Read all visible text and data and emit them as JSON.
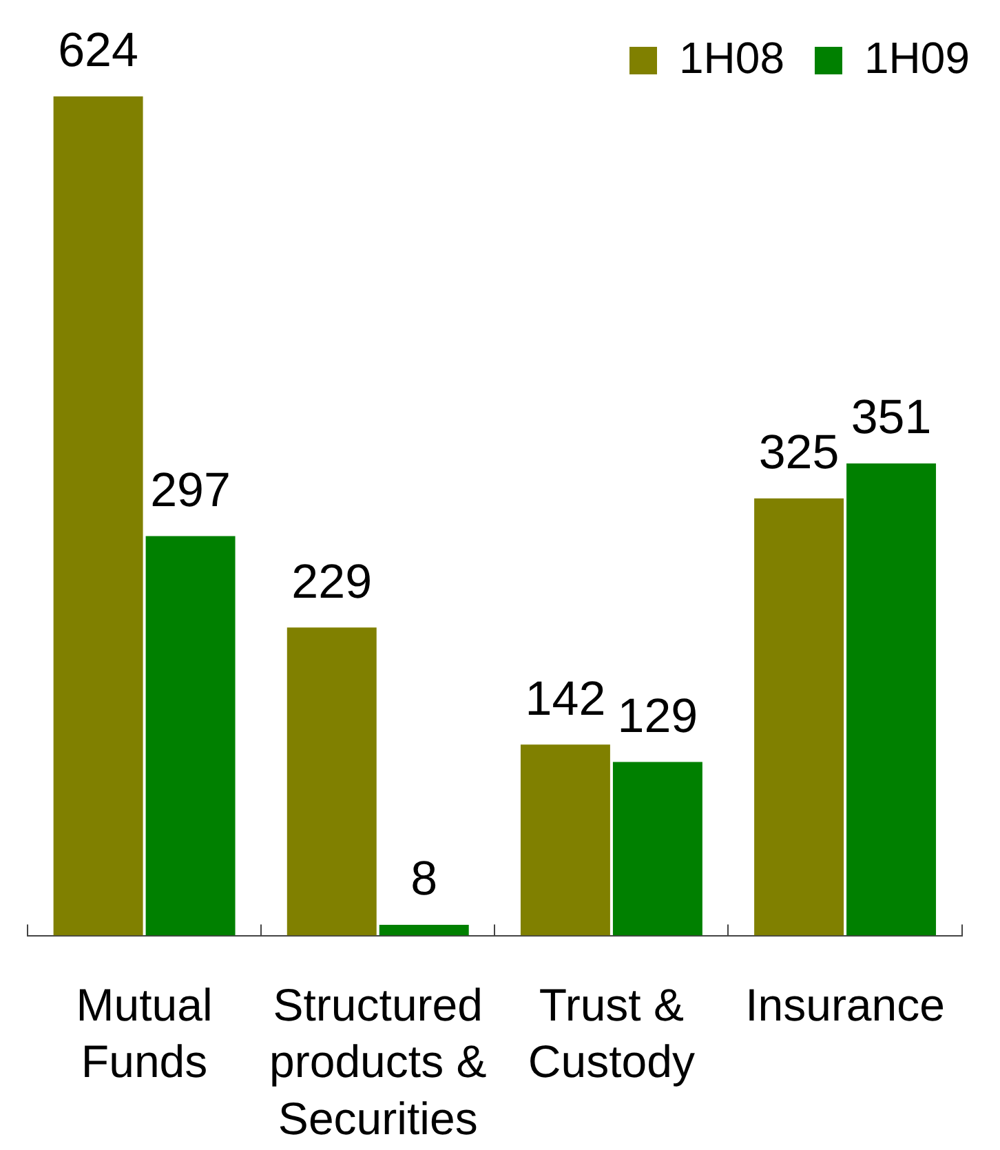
{
  "chart_data": {
    "type": "bar",
    "categories": [
      "Mutual Funds",
      "Structured products & Securities",
      "Trust & Custody",
      "Insurance"
    ],
    "series": [
      {
        "name": "1H08",
        "color": "#808000",
        "values": [
          624,
          229,
          142,
          325
        ]
      },
      {
        "name": "1H09",
        "color": "#008000",
        "values": [
          297,
          8,
          129,
          351
        ]
      }
    ],
    "data_labels": true,
    "legend": "top right"
  }
}
